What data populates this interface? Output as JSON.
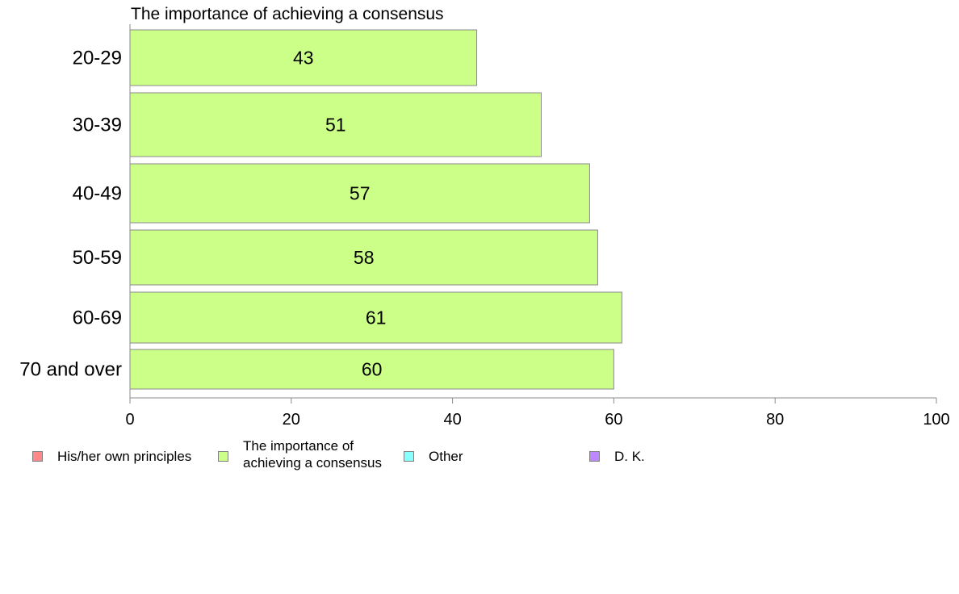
{
  "chart_data": {
    "type": "bar",
    "orientation": "horizontal",
    "title": "The importance of achieving a consensus",
    "categories": [
      "20-29",
      "30-39",
      "40-49",
      "50-59",
      "60-69",
      "70 and over"
    ],
    "series": [
      {
        "name": "The importance of achieving a consensus",
        "values": [
          43,
          51,
          57,
          58,
          61,
          60
        ],
        "color": "#ccff88"
      }
    ],
    "data_labels": [
      "43",
      "51",
      "57",
      "58",
      "61",
      "60"
    ],
    "xlim": [
      0,
      100
    ],
    "xticks": [
      "0",
      "20",
      "40",
      "60",
      "80",
      "100"
    ],
    "grid": false,
    "legend_position": "bottom"
  },
  "legend": [
    {
      "label": "His/her own principles",
      "color": "#ff8888"
    },
    {
      "label": "The importance of achieving a consensus",
      "color": "#ccff88"
    },
    {
      "label": "Other",
      "color": "#88ffff"
    },
    {
      "label": "D. K.",
      "color": "#bb88ff"
    }
  ]
}
